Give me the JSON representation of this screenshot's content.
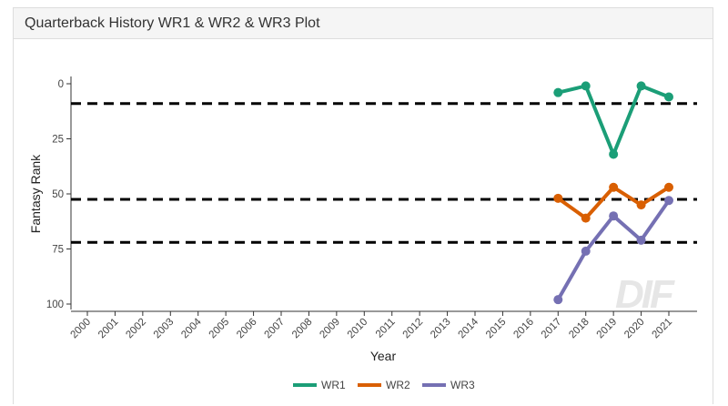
{
  "panel": {
    "title": "Quarterback History WR1 & WR2 & WR3 Plot"
  },
  "watermark": "DIF",
  "chart_data": {
    "type": "line",
    "xlabel": "Year",
    "ylabel": "Fantasy Rank",
    "x": [
      "2000",
      "2001",
      "2002",
      "2003",
      "2004",
      "2005",
      "2006",
      "2007",
      "2008",
      "2009",
      "2010",
      "2011",
      "2012",
      "2013",
      "2014",
      "2015",
      "2016",
      "2017",
      "2018",
      "2019",
      "2020",
      "2021"
    ],
    "ylim": [
      0,
      100
    ],
    "y_reversed": true,
    "y_ticks": [
      0,
      25,
      50,
      75,
      100
    ],
    "grid": false,
    "legend_position": "bottom",
    "series": [
      {
        "name": "WR1",
        "color": "#1b9e77",
        "points": [
          [
            "2017",
            4
          ],
          [
            "2018",
            1
          ],
          [
            "2019",
            32
          ],
          [
            "2020",
            1
          ],
          [
            "2021",
            6
          ]
        ]
      },
      {
        "name": "WR2",
        "color": "#d95f02",
        "points": [
          [
            "2017",
            52
          ],
          [
            "2018",
            61
          ],
          [
            "2019",
            47
          ],
          [
            "2020",
            55
          ],
          [
            "2021",
            47
          ]
        ]
      },
      {
        "name": "WR3",
        "color": "#7570b3",
        "points": [
          [
            "2017",
            98
          ],
          [
            "2018",
            76
          ],
          [
            "2019",
            60
          ],
          [
            "2020",
            71
          ],
          [
            "2021",
            53
          ]
        ]
      }
    ],
    "reference_lines": [
      {
        "y": 9,
        "style": "dashed",
        "color": "#000000"
      },
      {
        "y": 52.5,
        "style": "dashed",
        "color": "#000000"
      },
      {
        "y": 72,
        "style": "dashed",
        "color": "#000000"
      }
    ]
  }
}
